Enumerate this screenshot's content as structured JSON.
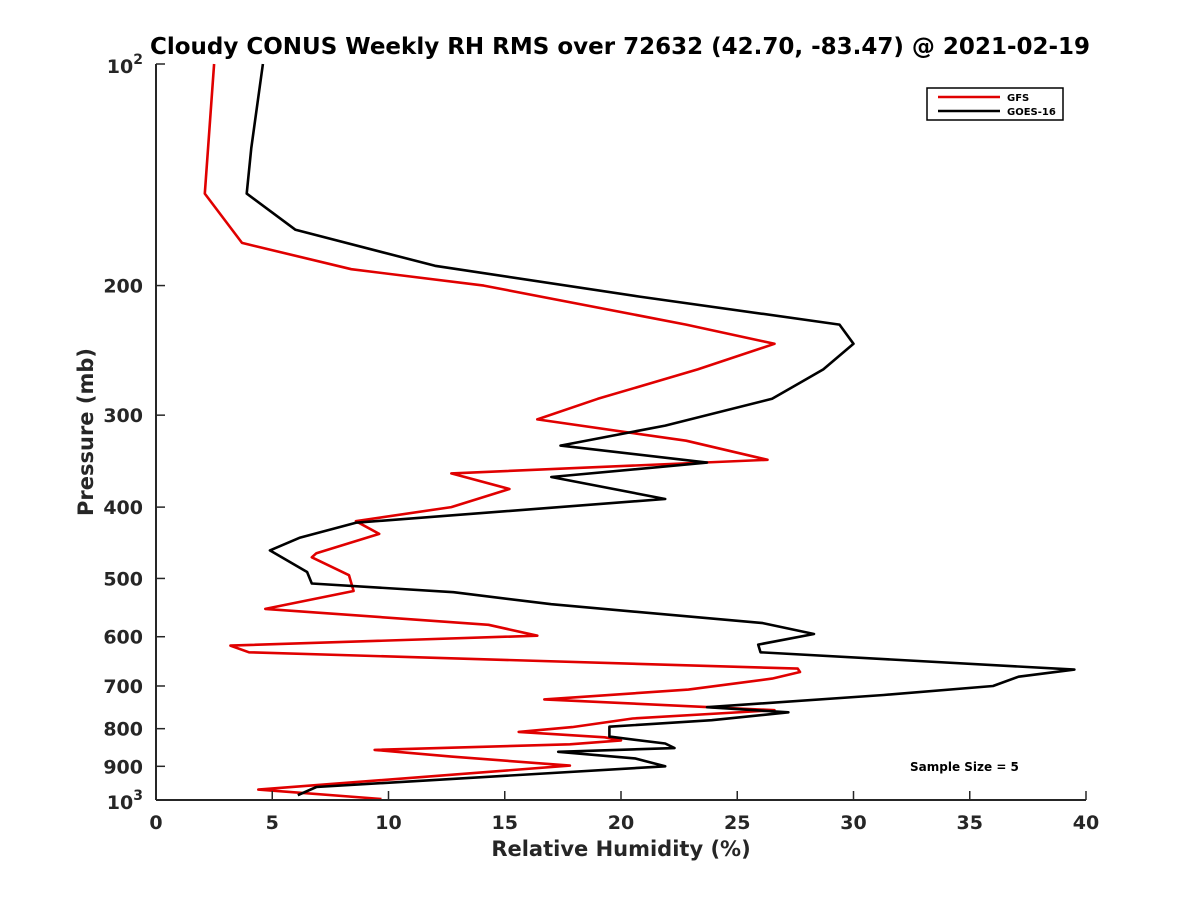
{
  "chart_data": {
    "type": "line",
    "title": "Cloudy CONUS Weekly RH RMS over 72632 (42.70, -83.47) @ 2021-02-19",
    "xlabel": "Relative Humidity (%)",
    "ylabel": "Pressure (mb)",
    "xlim": [
      0,
      40
    ],
    "ylim": [
      100,
      1000
    ],
    "y_scale": "log",
    "y_reversed": true,
    "x_ticks": [
      "0",
      "5",
      "10",
      "15",
      "20",
      "25",
      "30",
      "35",
      "40"
    ],
    "y_ticks": [
      {
        "value": 100,
        "base": "10",
        "exp": "2"
      },
      {
        "value": 200,
        "label": "200"
      },
      {
        "value": 300,
        "label": "300"
      },
      {
        "value": 400,
        "label": "400"
      },
      {
        "value": 500,
        "label": "500"
      },
      {
        "value": 600,
        "label": "600"
      },
      {
        "value": 700,
        "label": "700"
      },
      {
        "value": 800,
        "label": "800"
      },
      {
        "value": 900,
        "label": "900"
      },
      {
        "value": 1000,
        "base": "10",
        "exp": "3"
      }
    ],
    "grid": false,
    "legend_position": "top-right",
    "annotation": "Sample Size = 5",
    "series": [
      {
        "name": "GFS",
        "color": "#e00000",
        "points": [
          [
            2.5,
            100
          ],
          [
            2.1,
            150
          ],
          [
            3.7,
            175
          ],
          [
            8.4,
            190
          ],
          [
            14.1,
            200
          ],
          [
            22.8,
            226
          ],
          [
            26.6,
            240
          ],
          [
            23.3,
            260
          ],
          [
            19.0,
            285
          ],
          [
            16.4,
            304
          ],
          [
            22.8,
            325
          ],
          [
            26.3,
            345
          ],
          [
            12.7,
            360
          ],
          [
            15.2,
            378
          ],
          [
            12.7,
            400
          ],
          [
            8.6,
            418
          ],
          [
            9.6,
            435
          ],
          [
            6.9,
            462
          ],
          [
            6.7,
            468
          ],
          [
            8.3,
            495
          ],
          [
            8.5,
            520
          ],
          [
            4.7,
            550
          ],
          [
            14.3,
            578
          ],
          [
            16.4,
            598
          ],
          [
            3.2,
            617
          ],
          [
            4.0,
            630
          ],
          [
            27.6,
            663
          ],
          [
            27.7,
            670
          ],
          [
            26.5,
            684
          ],
          [
            22.9,
            708
          ],
          [
            16.7,
            730
          ],
          [
            26.6,
            755
          ],
          [
            20.5,
            775
          ],
          [
            17.9,
            796
          ],
          [
            15.6,
            808
          ],
          [
            19.3,
            822
          ],
          [
            20.0,
            830
          ],
          [
            17.8,
            840
          ],
          [
            9.4,
            855
          ],
          [
            12.7,
            873
          ],
          [
            17.8,
            898
          ],
          [
            4.4,
            968
          ],
          [
            9.7,
            997
          ]
        ]
      },
      {
        "name": "GOES-16",
        "color": "#000000",
        "points": [
          [
            4.6,
            100
          ],
          [
            4.1,
            130
          ],
          [
            3.9,
            150
          ],
          [
            6.0,
            168
          ],
          [
            12.0,
            188
          ],
          [
            20.8,
            207
          ],
          [
            29.4,
            226
          ],
          [
            30.0,
            240
          ],
          [
            28.7,
            260
          ],
          [
            26.5,
            285
          ],
          [
            21.9,
            310
          ],
          [
            17.4,
            330
          ],
          [
            23.7,
            348
          ],
          [
            17.0,
            364
          ],
          [
            21.9,
            390
          ],
          [
            8.6,
            420
          ],
          [
            6.2,
            440
          ],
          [
            4.9,
            458
          ],
          [
            6.5,
            490
          ],
          [
            6.7,
            508
          ],
          [
            12.8,
            522
          ],
          [
            17.0,
            542
          ],
          [
            26.1,
            575
          ],
          [
            28.3,
            595
          ],
          [
            25.9,
            615
          ],
          [
            26.0,
            630
          ],
          [
            39.5,
            665
          ],
          [
            37.1,
            680
          ],
          [
            36.0,
            700
          ],
          [
            31.3,
            720
          ],
          [
            23.7,
            748
          ],
          [
            27.2,
            760
          ],
          [
            23.9,
            779
          ],
          [
            19.5,
            795
          ],
          [
            19.5,
            820
          ],
          [
            21.9,
            838
          ],
          [
            22.3,
            850
          ],
          [
            17.3,
            860
          ],
          [
            20.6,
            878
          ],
          [
            21.9,
            900
          ],
          [
            6.9,
            960
          ],
          [
            6.1,
            985
          ]
        ]
      }
    ]
  }
}
